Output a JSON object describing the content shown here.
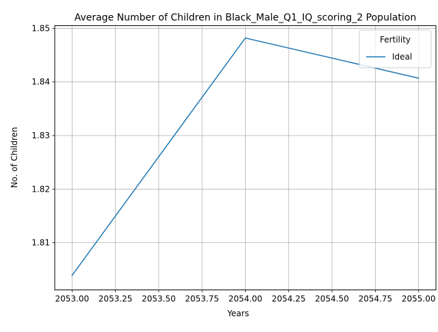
{
  "chart_data": {
    "type": "line",
    "title": "Average Number of Children in Black_Male_Q1_IQ_scoring_2 Population",
    "xlabel": "Years",
    "ylabel": "No. of Children",
    "xlim": [
      2052.9,
      2055.1
    ],
    "ylim": [
      1.8012,
      1.8505
    ],
    "x_ticks": [
      2053.0,
      2053.25,
      2053.5,
      2053.75,
      2054.0,
      2054.25,
      2054.5,
      2054.75,
      2055.0
    ],
    "x_tick_labels": [
      "2053.00",
      "2053.25",
      "2053.50",
      "2053.75",
      "2054.00",
      "2054.25",
      "2054.50",
      "2054.75",
      "2055.00"
    ],
    "y_ticks": [
      1.81,
      1.82,
      1.83,
      1.84,
      1.85
    ],
    "y_tick_labels": [
      "1.81",
      "1.82",
      "1.83",
      "1.84",
      "1.85"
    ],
    "grid": true,
    "legend": {
      "title": "Fertility",
      "position": "upper right"
    },
    "series": [
      {
        "name": "Ideal",
        "color": "#1f77b4",
        "x": [
          2053,
          2054,
          2055
        ],
        "y": [
          1.8039,
          1.8482,
          1.8407
        ]
      }
    ]
  }
}
